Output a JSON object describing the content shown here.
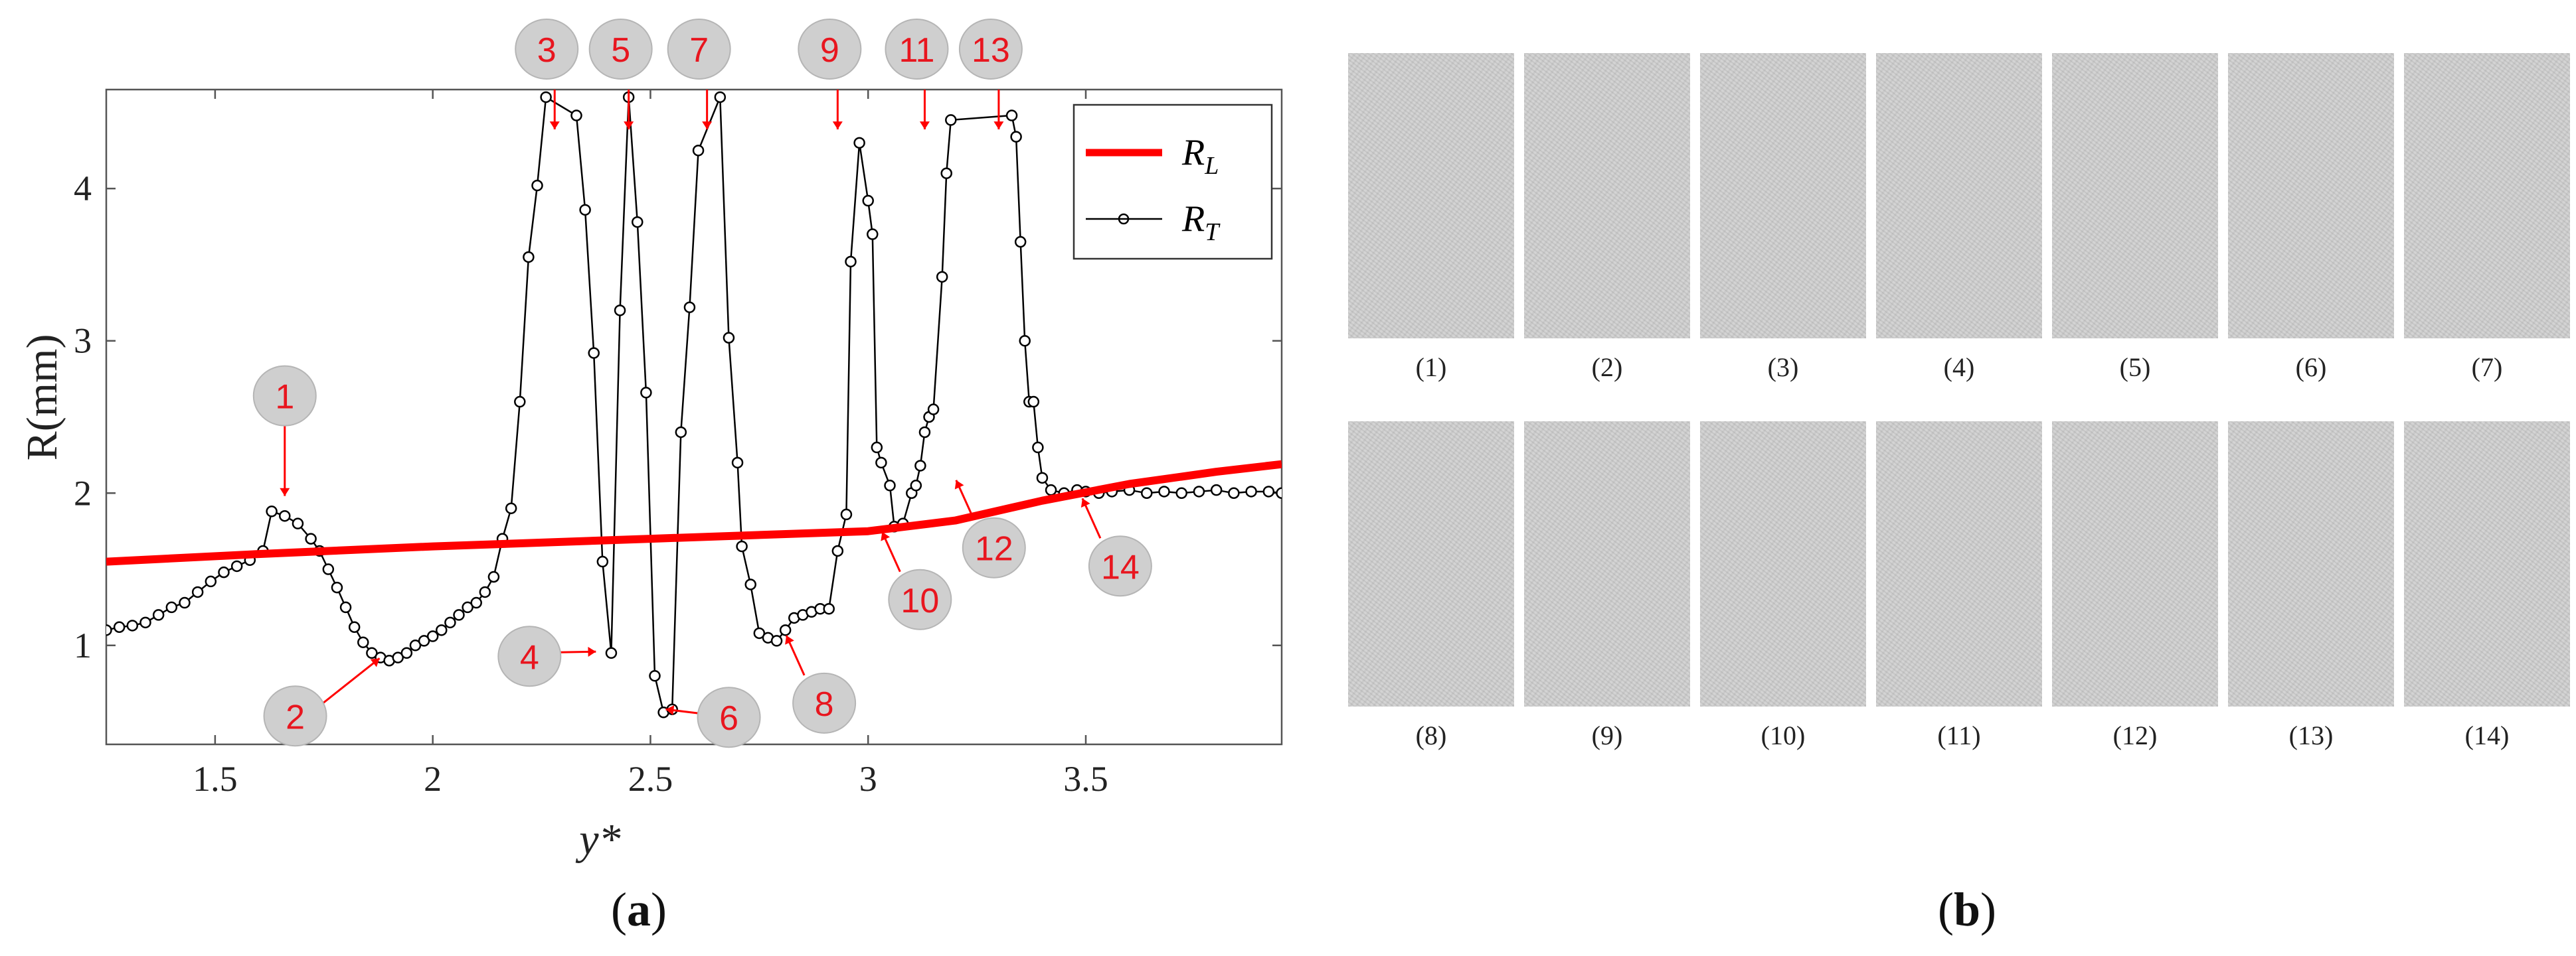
{
  "colors": {
    "rl": "#ff0000",
    "rt": "#000000",
    "marker_fill": "#cfcfcf",
    "marker_text": "#e8161f",
    "arrow": "#ff0000"
  },
  "chart_data": {
    "type": "line",
    "ylabel": "R(mm)",
    "xlabel": "y*",
    "xlim": [
      1.25,
      3.95
    ],
    "ylim": [
      0.35,
      4.65
    ],
    "xticks": [
      1.5,
      2,
      2.5,
      3,
      3.5
    ],
    "xtick_labels": [
      "1.5",
      "2",
      "2.5",
      "3",
      "3.5"
    ],
    "yticks": [
      1,
      2,
      3,
      4
    ],
    "ytick_labels": [
      "1",
      "2",
      "3",
      "4"
    ],
    "legend_position": "top-right",
    "series": [
      {
        "name": "R_L",
        "legend_main": "R",
        "legend_sub": "L",
        "style": "thick-line",
        "x": [
          1.25,
          1.6,
          2.0,
          2.5,
          3.0,
          3.2,
          3.4,
          3.6,
          3.8,
          3.95
        ],
        "y": [
          1.55,
          1.6,
          1.65,
          1.7,
          1.75,
          1.82,
          1.95,
          2.06,
          2.14,
          2.19
        ]
      },
      {
        "name": "R_T",
        "legend_main": "R",
        "legend_sub": "T",
        "style": "line-circle-markers",
        "x": [
          1.25,
          1.28,
          1.31,
          1.34,
          1.37,
          1.4,
          1.43,
          1.46,
          1.49,
          1.52,
          1.55,
          1.58,
          1.61,
          1.63,
          1.66,
          1.69,
          1.72,
          1.74,
          1.76,
          1.78,
          1.8,
          1.82,
          1.84,
          1.86,
          1.88,
          1.9,
          1.92,
          1.94,
          1.96,
          1.98,
          2.0,
          2.02,
          2.04,
          2.06,
          2.08,
          2.1,
          2.12,
          2.14,
          2.16,
          2.18,
          2.2,
          2.22,
          2.24,
          2.26,
          2.33,
          2.35,
          2.37,
          2.39,
          2.41,
          2.43,
          2.45,
          2.47,
          2.49,
          2.51,
          2.53,
          2.55,
          2.57,
          2.59,
          2.61,
          2.66,
          2.68,
          2.7,
          2.71,
          2.73,
          2.75,
          2.77,
          2.79,
          2.81,
          2.83,
          2.85,
          2.87,
          2.89,
          2.91,
          2.93,
          2.95,
          2.96,
          2.98,
          3.0,
          3.01,
          3.02,
          3.03,
          3.05,
          3.06,
          3.08,
          3.1,
          3.11,
          3.12,
          3.13,
          3.14,
          3.15,
          3.17,
          3.18,
          3.19,
          3.33,
          3.34,
          3.35,
          3.36,
          3.37,
          3.38,
          3.39,
          3.4,
          3.42,
          3.45,
          3.48,
          3.5,
          3.53,
          3.56,
          3.6,
          3.64,
          3.68,
          3.72,
          3.76,
          3.8,
          3.84,
          3.88,
          3.92,
          3.95
        ],
        "y": [
          1.1,
          1.12,
          1.13,
          1.15,
          1.2,
          1.25,
          1.28,
          1.35,
          1.42,
          1.48,
          1.52,
          1.56,
          1.62,
          1.88,
          1.85,
          1.8,
          1.7,
          1.62,
          1.5,
          1.38,
          1.25,
          1.12,
          1.02,
          0.95,
          0.92,
          0.9,
          0.92,
          0.95,
          1.0,
          1.03,
          1.06,
          1.1,
          1.15,
          1.2,
          1.25,
          1.28,
          1.35,
          1.45,
          1.7,
          1.9,
          2.6,
          3.55,
          4.02,
          4.6,
          4.48,
          3.86,
          2.92,
          1.55,
          0.95,
          3.2,
          4.6,
          3.78,
          2.66,
          0.8,
          0.56,
          0.58,
          2.4,
          3.22,
          4.25,
          4.6,
          3.02,
          2.2,
          1.65,
          1.4,
          1.08,
          1.05,
          1.03,
          1.1,
          1.18,
          1.2,
          1.22,
          1.24,
          1.24,
          1.62,
          1.86,
          3.52,
          4.3,
          3.92,
          3.7,
          2.3,
          2.2,
          2.05,
          1.78,
          1.8,
          2.0,
          2.05,
          2.18,
          2.4,
          2.5,
          2.55,
          3.42,
          4.1,
          4.45,
          4.48,
          4.34,
          3.65,
          3.0,
          2.6,
          2.6,
          2.3,
          2.1,
          2.02,
          2.0,
          2.02,
          2.01,
          2.0,
          2.01,
          2.02,
          2.0,
          2.01,
          2.0,
          2.01,
          2.02,
          2.0,
          2.01,
          2.01,
          2.0
        ]
      }
    ],
    "annotations": [
      {
        "label": "1",
        "x": 1.66,
        "y": 1.92,
        "arrow": "down"
      },
      {
        "label": "2",
        "x": 1.89,
        "y": 0.95,
        "arrow": "to-point-up-right"
      },
      {
        "label": "3",
        "x": 2.28,
        "y": 4.6,
        "arrow": "down-top"
      },
      {
        "label": "4",
        "x": 2.39,
        "y": 0.95,
        "arrow": "to-point-right"
      },
      {
        "label": "5",
        "x": 2.45,
        "y": 4.6,
        "arrow": "down-top"
      },
      {
        "label": "6",
        "x": 2.52,
        "y": 0.58,
        "arrow": "to-point-left"
      },
      {
        "label": "7",
        "x": 2.63,
        "y": 4.6,
        "arrow": "down-top"
      },
      {
        "label": "8",
        "x": 2.8,
        "y": 1.1,
        "arrow": "to-point-up-left"
      },
      {
        "label": "9",
        "x": 2.93,
        "y": 4.6,
        "arrow": "down-top"
      },
      {
        "label": "10",
        "x": 3.02,
        "y": 1.78,
        "arrow": "to-point-up-left"
      },
      {
        "label": "11",
        "x": 3.13,
        "y": 4.6,
        "arrow": "down-top"
      },
      {
        "label": "12",
        "x": 3.19,
        "y": 2.12,
        "arrow": "to-point-up-left"
      },
      {
        "label": "13",
        "x": 3.3,
        "y": 4.6,
        "arrow": "down-top"
      },
      {
        "label": "14",
        "x": 3.48,
        "y": 2.0,
        "arrow": "to-point-up-left"
      }
    ]
  },
  "panel_labels": {
    "a": "a",
    "b": "b"
  },
  "panel_b": {
    "captions_row1": [
      "(1)",
      "(2)",
      "(3)",
      "(4)",
      "(5)",
      "(6)",
      "(7)"
    ],
    "captions_row2": [
      "(8)",
      "(9)",
      "(10)",
      "(11)",
      "(12)",
      "(13)",
      "(14)"
    ]
  }
}
